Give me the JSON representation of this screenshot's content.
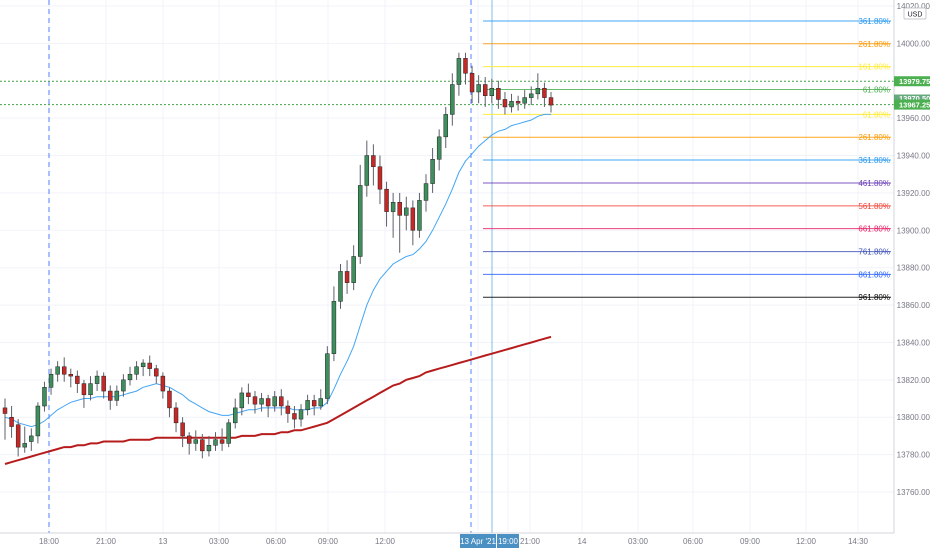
{
  "chart_data": {
    "type": "candlestick",
    "symbol_currency": "USD",
    "x_labels": [
      "18:00",
      "21:00",
      "13",
      "03:00",
      "06:00",
      "09:00",
      "12:00",
      "13 Apr '21",
      "19:00",
      "21:00",
      "14",
      "03:00",
      "06:00",
      "09:00",
      "12:00",
      "14:30"
    ],
    "x_highlight": "13 Apr '21",
    "y_axis": {
      "ticks": [
        13760,
        13780,
        13800,
        13820,
        13840,
        13860,
        13880,
        13900,
        13920,
        13940,
        13960,
        14000,
        14020
      ],
      "tick_labels": [
        "13760.00",
        "13780.00",
        "13800.00",
        "13820.00",
        "13840.00",
        "13860.00",
        "13880.00",
        "13900.00",
        "13920.00",
        "13940.00",
        "13960.00",
        "14000.00",
        "14020.00"
      ],
      "range": [
        13740,
        14020
      ]
    },
    "price_badges": [
      {
        "label": "13979.75",
        "value": 13979.75,
        "color": "#4caf50"
      },
      {
        "label": "13970.50",
        "value": 13970.5,
        "color": "#66a97f"
      },
      {
        "label": "07:14",
        "value": 13967.4,
        "color": "#66a97f"
      },
      {
        "label": "13967.25",
        "value": 13967.25,
        "color": "#4caf50"
      }
    ],
    "fib_levels": [
      {
        "label": "361.80%",
        "value": 14012,
        "color": "#2196f3"
      },
      {
        "label": "261.80%",
        "value": 13999.8,
        "color": "#ff9800"
      },
      {
        "label": "161.80%",
        "value": 13987.6,
        "color": "#ffeb3b"
      },
      {
        "label": "61.80%",
        "value": 13975.3,
        "color": "#4caf50"
      },
      {
        "label": "61.80%",
        "value": 13962,
        "color": "#ffeb3b"
      },
      {
        "label": "261.80%",
        "value": 13949.8,
        "color": "#ff9800"
      },
      {
        "label": "361.80%",
        "value": 13937.6,
        "color": "#2196f3"
      },
      {
        "label": "461.80%",
        "value": 13925.3,
        "color": "#673ab7"
      },
      {
        "label": "561.80%",
        "value": 13913.1,
        "color": "#f44336"
      },
      {
        "label": "661.80%",
        "value": 13900.9,
        "color": "#e91e63"
      },
      {
        "label": "761.80%",
        "value": 13888.6,
        "color": "#3f51b5"
      },
      {
        "label": "861.80%",
        "value": 13876.4,
        "color": "#2962ff"
      },
      {
        "label": "961.80%",
        "value": 13864.2,
        "color": "#000000"
      }
    ],
    "horizontal_lines": [
      13979.75,
      13967.25
    ],
    "vertical_lines_at_label": [
      "18:00",
      "13 Apr '21"
    ],
    "candles": [
      [
        13805,
        13802,
        13810,
        13788
      ],
      [
        13800,
        13795,
        13806,
        13789
      ],
      [
        13796,
        13784,
        13799,
        13779
      ],
      [
        13784,
        13786,
        13795,
        13781
      ],
      [
        13787,
        13790,
        13794,
        13782
      ],
      [
        13790,
        13806,
        13808,
        13786
      ],
      [
        13806,
        13816,
        13819,
        13803
      ],
      [
        13816,
        13823,
        13826,
        13812
      ],
      [
        13823,
        13827,
        13830,
        13819
      ],
      [
        13827,
        13823,
        13832,
        13819
      ],
      [
        13823,
        13822,
        13826,
        13816
      ],
      [
        13822,
        13818,
        13825,
        13813
      ],
      [
        13818,
        13812,
        13820,
        13805
      ],
      [
        13812,
        13818,
        13822,
        13809
      ],
      [
        13818,
        13822,
        13825,
        13814
      ],
      [
        13822,
        13814,
        13824,
        13810
      ],
      [
        13814,
        13809,
        13817,
        13804
      ],
      [
        13809,
        13814,
        13817,
        13806
      ],
      [
        13814,
        13820,
        13823,
        13811
      ],
      [
        13820,
        13823,
        13827,
        13817
      ],
      [
        13823,
        13827,
        13830,
        13820
      ],
      [
        13827,
        13829,
        13831,
        13822
      ],
      [
        13829,
        13826,
        13833,
        13822
      ],
      [
        13826,
        13822,
        13828,
        13818
      ],
      [
        13822,
        13814,
        13824,
        13810
      ],
      [
        13814,
        13805,
        13816,
        13800
      ],
      [
        13805,
        13797,
        13808,
        13792
      ],
      [
        13797,
        13790,
        13800,
        13784
      ],
      [
        13790,
        13786,
        13792,
        13780
      ],
      [
        13786,
        13788,
        13793,
        13782
      ],
      [
        13788,
        13782,
        13791,
        13778
      ],
      [
        13782,
        13785,
        13790,
        13779
      ],
      [
        13785,
        13788,
        13792,
        13782
      ],
      [
        13788,
        13786,
        13794,
        13782
      ],
      [
        13786,
        13797,
        13799,
        13784
      ],
      [
        13797,
        13805,
        13810,
        13794
      ],
      [
        13805,
        13813,
        13816,
        13801
      ],
      [
        13813,
        13811,
        13818,
        13807
      ],
      [
        13811,
        13807,
        13814,
        13802
      ],
      [
        13807,
        13810,
        13813,
        13803
      ],
      [
        13810,
        13806,
        13812,
        13800
      ],
      [
        13806,
        13811,
        13814,
        13803
      ],
      [
        13811,
        13806,
        13815,
        13801
      ],
      [
        13806,
        13802,
        13809,
        13797
      ],
      [
        13802,
        13799,
        13806,
        13794
      ],
      [
        13799,
        13804,
        13807,
        13795
      ],
      [
        13804,
        13809,
        13812,
        13801
      ],
      [
        13809,
        13806,
        13812,
        13801
      ],
      [
        13806,
        13810,
        13815,
        13804
      ],
      [
        13810,
        13834,
        13838,
        13807
      ],
      [
        13834,
        13862,
        13870,
        13830
      ],
      [
        13862,
        13878,
        13882,
        13858
      ],
      [
        13878,
        13872,
        13884,
        13866
      ],
      [
        13872,
        13886,
        13892,
        13868
      ],
      [
        13886,
        13924,
        13935,
        13882
      ],
      [
        13924,
        13940,
        13948,
        13918
      ],
      [
        13940,
        13934,
        13946,
        13924
      ],
      [
        13934,
        13922,
        13940,
        13914
      ],
      [
        13922,
        13910,
        13926,
        13902
      ],
      [
        13910,
        13915,
        13920,
        13896
      ],
      [
        13915,
        13908,
        13920,
        13888
      ],
      [
        13908,
        13912,
        13918,
        13900
      ],
      [
        13912,
        13900,
        13916,
        13892
      ],
      [
        13900,
        13916,
        13920,
        13896
      ],
      [
        13916,
        13925,
        13930,
        13910
      ],
      [
        13925,
        13938,
        13944,
        13920
      ],
      [
        13938,
        13950,
        13954,
        13932
      ],
      [
        13950,
        13962,
        13966,
        13944
      ],
      [
        13962,
        13978,
        13984,
        13956
      ],
      [
        13978,
        13992,
        13995,
        13972
      ],
      [
        13992,
        13984,
        13995,
        13978
      ],
      [
        13984,
        13974,
        13988,
        13968
      ],
      [
        13974,
        13978,
        13983,
        13968
      ],
      [
        13978,
        13972,
        13982,
        13966
      ],
      [
        13972,
        13976,
        13981,
        13968
      ],
      [
        13976,
        13970,
        13980,
        13965
      ],
      [
        13970,
        13966,
        13974,
        13962
      ],
      [
        13966,
        13969,
        13973,
        13963
      ],
      [
        13969,
        13968,
        13972,
        13964
      ],
      [
        13968,
        13971,
        13975,
        13965
      ],
      [
        13971,
        13973,
        13977,
        13967
      ],
      [
        13973,
        13976,
        13984,
        13970
      ],
      [
        13976,
        13971,
        13979,
        13966
      ],
      [
        13971,
        13967,
        13974,
        13963
      ]
    ],
    "ema_fast": [
      13800,
      13799,
      13797,
      13796,
      13795,
      13796,
      13798,
      13801,
      13804,
      13806,
      13808,
      13809,
      13810,
      13810,
      13811,
      13811,
      13811,
      13811,
      13812,
      13813,
      13814,
      13816,
      13817,
      13818,
      13817,
      13816,
      13814,
      13812,
      13809,
      13807,
      13805,
      13803,
      13802,
      13801,
      13801,
      13802,
      13803,
      13804,
      13804,
      13805,
      13805,
      13805,
      13805,
      13805,
      13804,
      13804,
      13804,
      13805,
      13805,
      13808,
      13815,
      13823,
      13830,
      13838,
      13849,
      13860,
      13868,
      13874,
      13878,
      13882,
      13884,
      13886,
      13887,
      13890,
      13894,
      13900,
      13907,
      13914,
      13922,
      13931,
      13937,
      13941,
      13945,
      13948,
      13951,
      13953,
      13954,
      13956,
      13957,
      13958,
      13959,
      13961,
      13962,
      13962
    ],
    "ema_slow": [
      13775,
      13776,
      13777,
      13778,
      13779,
      13780,
      13781,
      13782,
      13783,
      13784,
      13784,
      13785,
      13785,
      13786,
      13786,
      13787,
      13787,
      13787,
      13787,
      13788,
      13788,
      13788,
      13788,
      13789,
      13789,
      13789,
      13789,
      13789,
      13789,
      13789,
      13789,
      13789,
      13789,
      13789,
      13789,
      13789,
      13790,
      13790,
      13790,
      13791,
      13791,
      13791,
      13792,
      13792,
      13793,
      13793,
      13794,
      13795,
      13796,
      13797,
      13799,
      13801,
      13803,
      13805,
      13807,
      13809,
      13811,
      13813,
      13815,
      13817,
      13818,
      13820,
      13821,
      13822,
      13824,
      13825,
      13826,
      13827,
      13828,
      13829,
      13830,
      13831,
      13832,
      13833,
      13834,
      13835,
      13836,
      13837,
      13838,
      13839,
      13840,
      13841,
      13842,
      13843
    ]
  }
}
